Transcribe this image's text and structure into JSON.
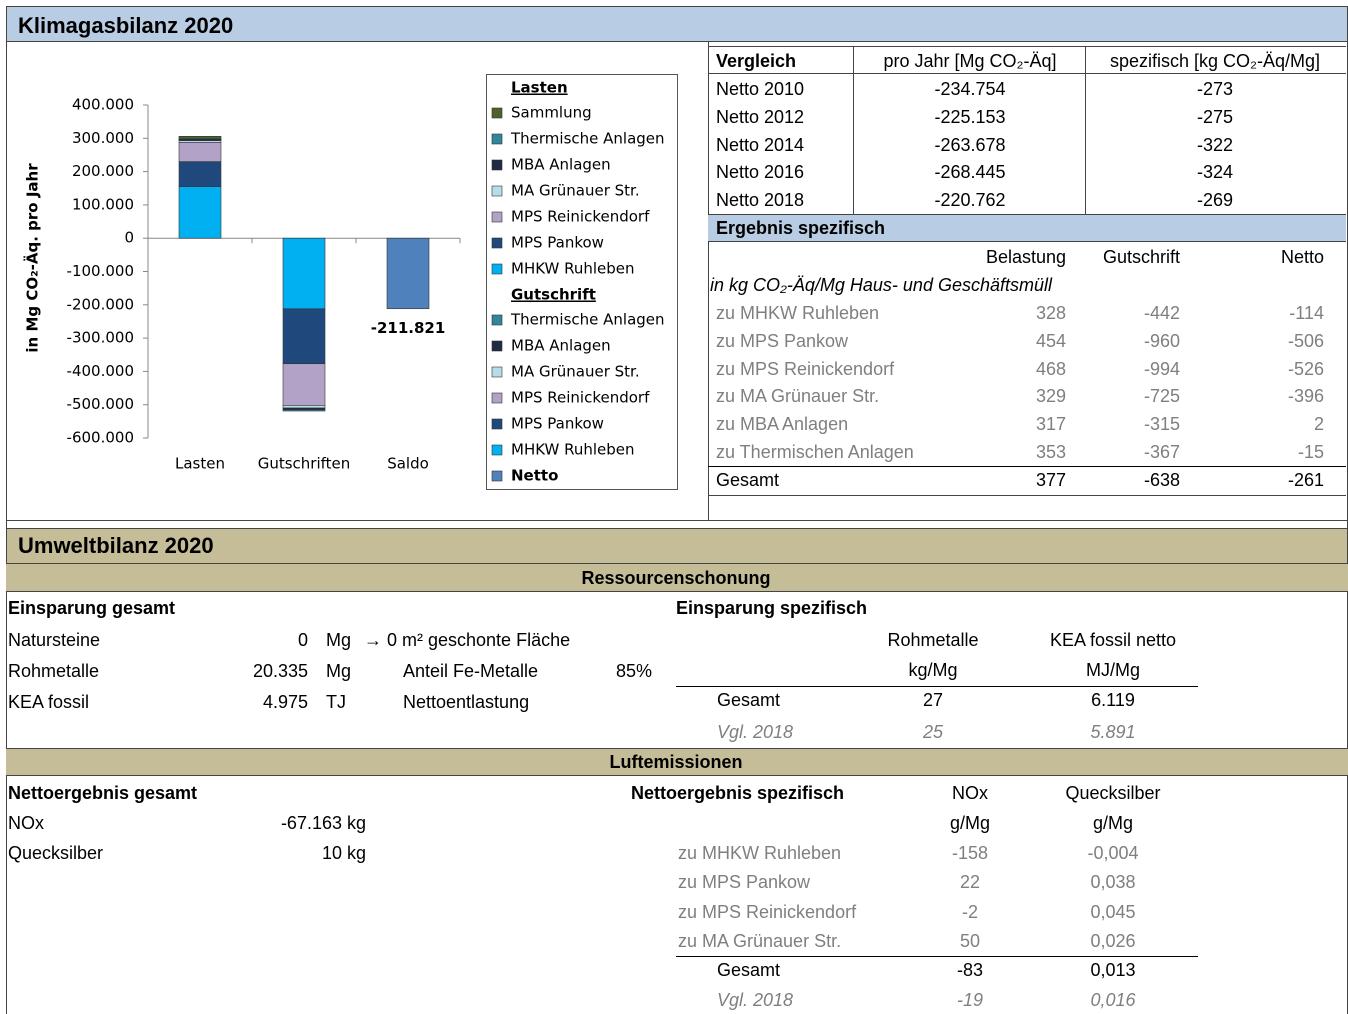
{
  "header": {
    "title": "Klimagasbilanz 2020"
  },
  "chart_data": {
    "type": "bar",
    "stacked": true,
    "categories": [
      "Lasten",
      "Gutschriften",
      "Saldo"
    ],
    "ylabel": "in Mg CO₂-Äq. pro Jahr",
    "ylim": [
      -600000,
      400000
    ],
    "yticks": [
      {
        "value": 400000,
        "label": "400.000"
      },
      {
        "value": 300000,
        "label": "300.000"
      },
      {
        "value": 200000,
        "label": "200.000"
      },
      {
        "value": 100000,
        "label": "100.000"
      },
      0,
      {
        "value": -100000,
        "label": "-100.000"
      },
      {
        "value": -200000,
        "label": "-200.000"
      },
      {
        "value": -300000,
        "label": "-300.000"
      },
      {
        "value": -400000,
        "label": "-400.000"
      },
      {
        "value": -500000,
        "label": "-500.000"
      },
      {
        "value": -600000,
        "label": "-600.000"
      }
    ],
    "groups": [
      {
        "title": "Lasten",
        "series": [
          {
            "name": "Sammlung",
            "color": "#4f6228",
            "values": [
              6000,
              null,
              null
            ]
          },
          {
            "name": "Thermische Anlagen",
            "color": "#31859c",
            "values": [
              3000,
              null,
              null
            ]
          },
          {
            "name": "MBA Anlagen",
            "color": "#1f2a44",
            "values": [
              4000,
              null,
              null
            ]
          },
          {
            "name": "MA Grünauer Str.",
            "color": "#b7dee8",
            "values": [
              5000,
              null,
              null
            ]
          },
          {
            "name": "MPS Reinickendorf",
            "color": "#b3a2c7",
            "values": [
              58000,
              null,
              null
            ]
          },
          {
            "name": "MPS Pankow",
            "color": "#1f497d",
            "values": [
              75000,
              null,
              null
            ]
          },
          {
            "name": "MHKW Ruhleben",
            "color": "#00b0f0",
            "values": [
              155000,
              null,
              null
            ]
          }
        ]
      },
      {
        "title": "Gutschrift",
        "series": [
          {
            "name": "Thermische Anlagen",
            "color": "#31859c",
            "values": [
              null,
              -4000,
              null
            ]
          },
          {
            "name": "MBA Anlagen",
            "color": "#1f2a44",
            "values": [
              null,
              -5000,
              null
            ]
          },
          {
            "name": "MA Grünauer Str.",
            "color": "#b7dee8",
            "values": [
              null,
              -8000,
              null
            ]
          },
          {
            "name": "MPS Reinickendorf",
            "color": "#b3a2c7",
            "values": [
              null,
              -125000,
              null
            ]
          },
          {
            "name": "MPS Pankow",
            "color": "#1f497d",
            "values": [
              null,
              -165000,
              null
            ]
          },
          {
            "name": "MHKW Ruhleben",
            "color": "#00b0f0",
            "values": [
              null,
              -212000,
              null
            ]
          }
        ]
      },
      {
        "series": [
          {
            "name": "Netto",
            "color": "#4f81bd",
            "values": [
              null,
              null,
              -211821
            ],
            "value_labels": [
              null,
              null,
              "-211.821"
            ]
          }
        ]
      }
    ]
  },
  "vergleich": {
    "columns": [
      "Vergleich",
      "pro Jahr [Mg CO₂-Äq]",
      "spezifisch [kg CO₂-Äq/Mg]"
    ],
    "rows": [
      [
        "Netto 2010",
        "-234.754",
        "-273"
      ],
      [
        "Netto 2012",
        "-225.153",
        "-275"
      ],
      [
        "Netto 2014",
        "-263.678",
        "-322"
      ],
      [
        "Netto 2016",
        "-268.445",
        "-324"
      ],
      [
        "Netto 2018",
        "-220.762",
        "-269"
      ]
    ]
  },
  "ergebnis": {
    "title": "Ergebnis spezifisch",
    "columns": [
      "Belastung",
      "Gutschrift",
      "Netto"
    ],
    "unit": "in kg CO₂-Äq/Mg Haus- und Geschäftsmüll",
    "rows": [
      [
        "zu MHKW Ruhleben",
        "328",
        "-442",
        "-114"
      ],
      [
        "zu MPS Pankow",
        "454",
        "-960",
        "-506"
      ],
      [
        "zu MPS Reinickendorf",
        "468",
        "-994",
        "-526"
      ],
      [
        "zu MA Grünauer Str.",
        "329",
        "-725",
        "-396"
      ],
      [
        "zu MBA Anlagen",
        "317",
        "-315",
        "2"
      ],
      [
        "zu Thermischen Anlagen",
        "353",
        "-367",
        "-15"
      ]
    ],
    "total": [
      "Gesamt",
      "377",
      "-638",
      "-261"
    ]
  },
  "umwelt": {
    "title": "Umweltbilanz 2020",
    "ressourcen": {
      "title": "Ressourcenschonung",
      "gesamt": {
        "heading": "Einsparung gesamt",
        "rows": [
          [
            "Natursteine",
            "0",
            "Mg",
            "→ 0 m² geschonte Fläche"
          ],
          [
            "Rohmetalle",
            "20.335",
            "Mg",
            "Anteil Fe-Metalle",
            "85%"
          ],
          [
            "KEA fossil",
            "4.975",
            "TJ",
            "Nettoentlastung"
          ]
        ]
      },
      "spezifisch": {
        "heading": "Einsparung spezifisch",
        "columns": [
          "Rohmetalle",
          "KEA fossil netto"
        ],
        "units": [
          "kg/Mg",
          "MJ/Mg"
        ],
        "total": [
          "Gesamt",
          "27",
          "6.119"
        ],
        "vgl": [
          "Vgl. 2018",
          "25",
          "5.891"
        ]
      }
    },
    "luft": {
      "title": "Luftemissionen",
      "gesamt": {
        "heading": "Nettoergebnis gesamt",
        "rows": [
          [
            "NOx",
            "-67.163",
            "kg"
          ],
          [
            "Quecksilber",
            "10",
            "kg"
          ]
        ]
      },
      "spezifisch": {
        "heading": "Nettoergebnis spezifisch",
        "columns": [
          "NOx",
          "Quecksilber"
        ],
        "units": [
          "g/Mg",
          "g/Mg"
        ],
        "rows": [
          [
            "zu MHKW Ruhleben",
            "-158",
            "-0,004"
          ],
          [
            "zu MPS Pankow",
            "22",
            "0,038"
          ],
          [
            "zu MPS Reinickendorf",
            "-2",
            "0,045"
          ],
          [
            "zu MA Grünauer Str.",
            "50",
            "0,026"
          ]
        ],
        "total": [
          "Gesamt",
          "-83",
          "0,013"
        ],
        "vgl": [
          "Vgl. 2018",
          "-19",
          "0,016"
        ]
      }
    }
  }
}
